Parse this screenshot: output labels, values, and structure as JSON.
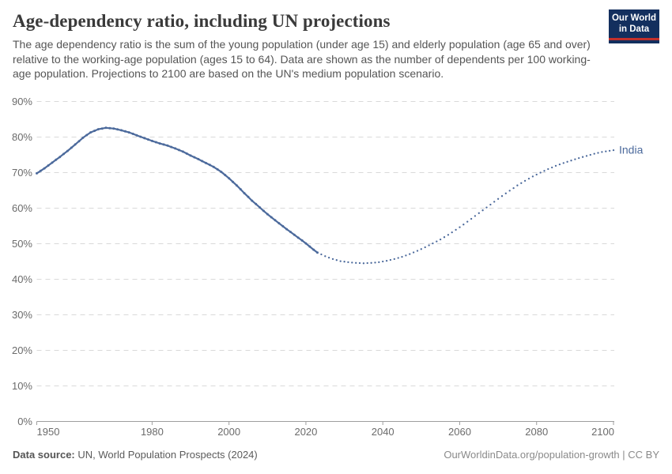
{
  "header": {
    "title": "Age-dependency ratio, including UN projections",
    "subtitle": "The age dependency ratio is the sum of the young population (under age 15) and elderly population (age 65 and over) relative to the working-age population (ages 15 to 64). Data are shown as the number of dependents per 100 working-age population. Projections to 2100 are based on the UN's medium population scenario.",
    "logo": {
      "line1": "Our World",
      "line2": "in Data",
      "bg_color": "#132F5E",
      "bar_color": "#C2302B",
      "text_color": "#FFFFFF"
    }
  },
  "chart_data": {
    "type": "line",
    "title": "Age-dependency ratio, including UN projections",
    "entity": "India",
    "end_label": "India",
    "unit": "%",
    "xlabel": "",
    "ylabel": "",
    "xlim": [
      1950,
      2100
    ],
    "ylim": [
      0,
      90
    ],
    "x_ticks": [
      1950,
      1980,
      2000,
      2020,
      2040,
      2060,
      2080,
      2100
    ],
    "y_ticks": [
      0,
      10,
      20,
      30,
      40,
      50,
      60,
      70,
      80,
      90
    ],
    "y_tick_suffix": "%",
    "grid": "horizontal-dashed",
    "legend_position": "end-of-line",
    "line_color": "#4C6A9C",
    "grid_color": "#d9d9d9",
    "axis_color": "#9e9e9e",
    "series": [
      {
        "name": "India (observed)",
        "style": "solid",
        "points": [
          [
            1950,
            69.8
          ],
          [
            1952,
            71.2
          ],
          [
            1954,
            72.8
          ],
          [
            1956,
            74.4
          ],
          [
            1958,
            76.1
          ],
          [
            1960,
            77.9
          ],
          [
            1962,
            79.8
          ],
          [
            1964,
            81.3
          ],
          [
            1966,
            82.2
          ],
          [
            1968,
            82.6
          ],
          [
            1970,
            82.4
          ],
          [
            1972,
            81.9
          ],
          [
            1974,
            81.3
          ],
          [
            1976,
            80.5
          ],
          [
            1978,
            79.7
          ],
          [
            1980,
            78.9
          ],
          [
            1982,
            78.2
          ],
          [
            1984,
            77.6
          ],
          [
            1986,
            76.8
          ],
          [
            1988,
            75.9
          ],
          [
            1990,
            74.8
          ],
          [
            1992,
            73.8
          ],
          [
            1994,
            72.7
          ],
          [
            1996,
            71.6
          ],
          [
            1998,
            70.2
          ],
          [
            2000,
            68.4
          ],
          [
            2002,
            66.4
          ],
          [
            2004,
            64.2
          ],
          [
            2006,
            62.1
          ],
          [
            2008,
            60.2
          ],
          [
            2010,
            58.3
          ],
          [
            2012,
            56.6
          ],
          [
            2014,
            54.9
          ],
          [
            2016,
            53.3
          ],
          [
            2018,
            51.7
          ],
          [
            2020,
            50.1
          ],
          [
            2021,
            49.2
          ],
          [
            2022,
            48.3
          ],
          [
            2023,
            47.5
          ]
        ]
      },
      {
        "name": "India (UN medium projection)",
        "style": "dotted",
        "points": [
          [
            2023,
            47.5
          ],
          [
            2025,
            46.5
          ],
          [
            2027,
            45.7
          ],
          [
            2029,
            45.1
          ],
          [
            2031,
            44.8
          ],
          [
            2033,
            44.6
          ],
          [
            2035,
            44.5
          ],
          [
            2037,
            44.6
          ],
          [
            2039,
            44.8
          ],
          [
            2041,
            45.2
          ],
          [
            2043,
            45.7
          ],
          [
            2045,
            46.3
          ],
          [
            2047,
            47.1
          ],
          [
            2049,
            48.0
          ],
          [
            2051,
            49.0
          ],
          [
            2053,
            50.1
          ],
          [
            2055,
            51.2
          ],
          [
            2057,
            52.5
          ],
          [
            2059,
            53.9
          ],
          [
            2061,
            55.4
          ],
          [
            2063,
            57.0
          ],
          [
            2065,
            58.6
          ],
          [
            2067,
            60.2
          ],
          [
            2069,
            61.8
          ],
          [
            2071,
            63.4
          ],
          [
            2073,
            64.9
          ],
          [
            2075,
            66.4
          ],
          [
            2077,
            67.7
          ],
          [
            2079,
            68.9
          ],
          [
            2081,
            70.0
          ],
          [
            2083,
            71.0
          ],
          [
            2085,
            71.9
          ],
          [
            2087,
            72.7
          ],
          [
            2089,
            73.4
          ],
          [
            2091,
            74.1
          ],
          [
            2093,
            74.7
          ],
          [
            2095,
            75.3
          ],
          [
            2097,
            75.8
          ],
          [
            2100,
            76.3
          ]
        ]
      }
    ]
  },
  "footer": {
    "source_label": "Data source:",
    "source_text": "UN, World Population Prospects (2024)",
    "credit": "OurWorldinData.org/population-growth | CC BY"
  }
}
